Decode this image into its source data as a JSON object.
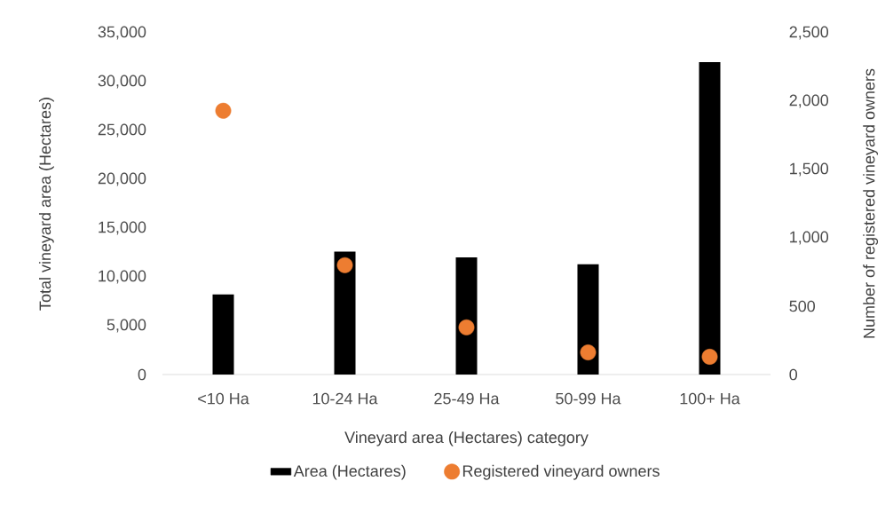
{
  "chart_data": {
    "type": "bar",
    "categories": [
      "<10 Ha",
      "10-24 Ha",
      "25-49 Ha",
      "50-99 Ha",
      "100+ Ha"
    ],
    "xlabel": "Vineyard area (Hectares) category",
    "ylabel": "Total vineyard area (Hectares)",
    "y2label": "Number of registered vineyard owners",
    "series": [
      {
        "name": "Area (Hectares)",
        "color": "#000000",
        "values": [
          8200,
          12600,
          12000,
          11300,
          32000
        ]
      },
      {
        "name": "Registered vineyard owners",
        "type": "scatter",
        "axis": "y2",
        "color": "#ed7d31",
        "values": [
          1930,
          800,
          345,
          162,
          130
        ]
      }
    ],
    "ylim": [
      0,
      35000
    ],
    "yticks": [
      {
        "value": 0,
        "label": "0"
      },
      {
        "value": 5000,
        "label": "5,000"
      },
      {
        "value": 10000,
        "label": "10,000"
      },
      {
        "value": 15000,
        "label": "15,000"
      },
      {
        "value": 20000,
        "label": "20,000"
      },
      {
        "value": 25000,
        "label": "25,000"
      },
      {
        "value": 30000,
        "label": "30,000"
      },
      {
        "value": 35000,
        "label": "35,000"
      }
    ],
    "y2lim": [
      0,
      2500
    ],
    "y2ticks": [
      {
        "value": 0,
        "label": "0"
      },
      {
        "value": 500,
        "label": "500"
      },
      {
        "value": 1000,
        "label": "1,000"
      },
      {
        "value": 1500,
        "label": "1,500"
      },
      {
        "value": 2000,
        "label": "2,000"
      },
      {
        "value": 2500,
        "label": "2,500"
      }
    ],
    "legend": "bottom"
  }
}
